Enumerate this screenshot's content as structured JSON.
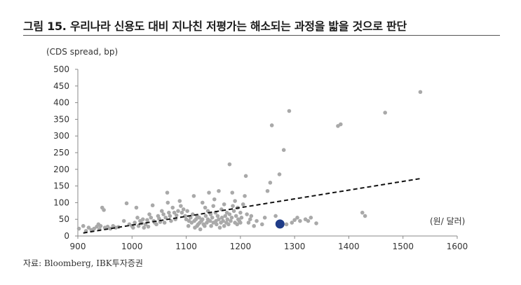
{
  "figure": {
    "title": "그림 15. 우리나라 신용도 대비 지나친 저평가는 해소되는 과정을 밟을 것으로 판단",
    "source": "자료: Bloomberg, IBK투자증권"
  },
  "chart_data": {
    "type": "scatter",
    "ylabel": "(CDS spread, bp)",
    "xlabel": "(원/ 달러)",
    "xlim": [
      900,
      1600
    ],
    "ylim": [
      0,
      500
    ],
    "xticks": [
      900,
      1000,
      1100,
      1200,
      1300,
      1400,
      1500,
      1600
    ],
    "yticks": [
      0,
      50,
      100,
      150,
      200,
      250,
      300,
      350,
      400,
      450,
      500
    ],
    "grid": false,
    "colors": {
      "points": "#a9a9a9",
      "highlight": "#1f3c88",
      "trend": "#111111"
    },
    "series": [
      {
        "values": [
          [
            902,
            22
          ],
          [
            910,
            30
          ],
          [
            915,
            15
          ],
          [
            920,
            25
          ],
          [
            925,
            18
          ],
          [
            930,
            22
          ],
          [
            935,
            28
          ],
          [
            938,
            35
          ],
          [
            940,
            20
          ],
          [
            942,
            30
          ],
          [
            945,
            85
          ],
          [
            948,
            78
          ],
          [
            950,
            25
          ],
          [
            955,
            28
          ],
          [
            960,
            22
          ],
          [
            965,
            30
          ],
          [
            970,
            25
          ],
          [
            975,
            27
          ],
          [
            985,
            45
          ],
          [
            990,
            98
          ],
          [
            995,
            35
          ],
          [
            1000,
            30
          ],
          [
            1002,
            25
          ],
          [
            1005,
            40
          ],
          [
            1008,
            85
          ],
          [
            1010,
            55
          ],
          [
            1012,
            30
          ],
          [
            1015,
            45
          ],
          [
            1018,
            38
          ],
          [
            1020,
            50
          ],
          [
            1022,
            25
          ],
          [
            1025,
            35
          ],
          [
            1028,
            48
          ],
          [
            1030,
            28
          ],
          [
            1032,
            65
          ],
          [
            1035,
            55
          ],
          [
            1038,
            92
          ],
          [
            1040,
            45
          ],
          [
            1042,
            40
          ],
          [
            1045,
            35
          ],
          [
            1048,
            60
          ],
          [
            1050,
            52
          ],
          [
            1052,
            42
          ],
          [
            1055,
            75
          ],
          [
            1058,
            65
          ],
          [
            1060,
            40
          ],
          [
            1062,
            55
          ],
          [
            1065,
            130
          ],
          [
            1066,
            100
          ],
          [
            1068,
            70
          ],
          [
            1070,
            60
          ],
          [
            1072,
            45
          ],
          [
            1075,
            85
          ],
          [
            1078,
            70
          ],
          [
            1080,
            50
          ],
          [
            1082,
            62
          ],
          [
            1085,
            75
          ],
          [
            1088,
            105
          ],
          [
            1090,
            90
          ],
          [
            1092,
            70
          ],
          [
            1095,
            80
          ],
          [
            1098,
            60
          ],
          [
            1100,
            50
          ],
          [
            1102,
            75
          ],
          [
            1104,
            30
          ],
          [
            1105,
            45
          ],
          [
            1108,
            55
          ],
          [
            1110,
            40
          ],
          [
            1112,
            65
          ],
          [
            1114,
            120
          ],
          [
            1115,
            45
          ],
          [
            1116,
            25
          ],
          [
            1118,
            50
          ],
          [
            1120,
            30
          ],
          [
            1120,
            60
          ],
          [
            1122,
            35
          ],
          [
            1124,
            55
          ],
          [
            1125,
            40
          ],
          [
            1126,
            20
          ],
          [
            1128,
            45
          ],
          [
            1130,
            50
          ],
          [
            1130,
            100
          ],
          [
            1132,
            35
          ],
          [
            1134,
            30
          ],
          [
            1135,
            85
          ],
          [
            1136,
            60
          ],
          [
            1138,
            40
          ],
          [
            1140,
            75
          ],
          [
            1140,
            50
          ],
          [
            1142,
            130
          ],
          [
            1144,
            45
          ],
          [
            1145,
            65
          ],
          [
            1146,
            30
          ],
          [
            1148,
            55
          ],
          [
            1150,
            40
          ],
          [
            1150,
            90
          ],
          [
            1152,
            110
          ],
          [
            1154,
            70
          ],
          [
            1155,
            45
          ],
          [
            1156,
            35
          ],
          [
            1158,
            60
          ],
          [
            1160,
            50
          ],
          [
            1160,
            135
          ],
          [
            1162,
            25
          ],
          [
            1164,
            40
          ],
          [
            1165,
            80
          ],
          [
            1166,
            55
          ],
          [
            1168,
            45
          ],
          [
            1170,
            30
          ],
          [
            1170,
            95
          ],
          [
            1172,
            60
          ],
          [
            1174,
            40
          ],
          [
            1175,
            70
          ],
          [
            1176,
            50
          ],
          [
            1178,
            35
          ],
          [
            1180,
            215
          ],
          [
            1180,
            65
          ],
          [
            1182,
            45
          ],
          [
            1184,
            55
          ],
          [
            1185,
            130
          ],
          [
            1186,
            90
          ],
          [
            1188,
            75
          ],
          [
            1190,
            40
          ],
          [
            1190,
            105
          ],
          [
            1192,
            60
          ],
          [
            1194,
            35
          ],
          [
            1195,
            85
          ],
          [
            1196,
            50
          ],
          [
            1198,
            45
          ],
          [
            1200,
            40
          ],
          [
            1200,
            70
          ],
          [
            1202,
            55
          ],
          [
            1205,
            95
          ],
          [
            1208,
            120
          ],
          [
            1210,
            180
          ],
          [
            1212,
            65
          ],
          [
            1215,
            40
          ],
          [
            1218,
            50
          ],
          [
            1220,
            60
          ],
          [
            1225,
            30
          ],
          [
            1230,
            45
          ],
          [
            1240,
            35
          ],
          [
            1245,
            55
          ],
          [
            1250,
            135
          ],
          [
            1255,
            160
          ],
          [
            1258,
            332
          ],
          [
            1265,
            60
          ],
          [
            1270,
            40
          ],
          [
            1272,
            185
          ],
          [
            1275,
            42
          ],
          [
            1280,
            258
          ],
          [
            1285,
            35
          ],
          [
            1290,
            375
          ],
          [
            1295,
            40
          ],
          [
            1300,
            48
          ],
          [
            1305,
            55
          ],
          [
            1310,
            45
          ],
          [
            1320,
            50
          ],
          [
            1325,
            45
          ],
          [
            1330,
            55
          ],
          [
            1340,
            38
          ],
          [
            1380,
            330
          ],
          [
            1385,
            335
          ],
          [
            1425,
            70
          ],
          [
            1430,
            60
          ],
          [
            1467,
            370
          ],
          [
            1532,
            432
          ]
        ]
      },
      {
        "values": [
          [
            1273,
            36
          ]
        ]
      }
    ],
    "trendline": {
      "from": [
        910,
        9
      ],
      "to": [
        1535,
        173
      ]
    }
  }
}
